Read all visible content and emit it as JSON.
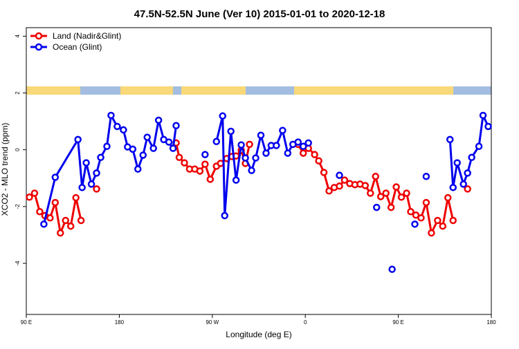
{
  "chart_data": {
    "type": "line",
    "title": "47.5N-52.5N June (Ver 10)   2015-01-01 to 2020-12-18",
    "x_label": "Longitude (deg E)",
    "y_label": "XCO2 - MLO trend (ppm)",
    "xlim": [
      90,
      540
    ],
    "ylim": [
      -5.8,
      4.3
    ],
    "xticks": [
      {
        "value": 90,
        "label": "90 E"
      },
      {
        "value": 180,
        "label": "180"
      },
      {
        "value": 270,
        "label": "90 W"
      },
      {
        "value": 360,
        "label": "0"
      },
      {
        "value": 450,
        "label": "90 E"
      },
      {
        "value": 540,
        "label": "180"
      }
    ],
    "yticks": [
      -4,
      -2,
      0,
      2,
      4
    ],
    "legend": "top-left",
    "series": [
      {
        "name": "Land (Nadir&Glint)",
        "color": "#ee0000",
        "x": [
          93,
          98,
          103,
          108,
          113,
          118,
          123,
          128,
          133,
          138,
          143,
          null,
          158,
          null,
          235,
          238,
          243,
          248,
          253,
          258,
          263,
          268,
          274,
          278,
          284,
          289,
          293,
          298,
          302,
          306,
          null,
          353,
          358,
          363,
          369,
          373,
          378,
          383,
          388,
          393,
          398,
          403,
          408,
          413,
          418,
          423,
          428,
          433,
          438,
          443,
          448,
          453,
          458,
          462,
          467,
          472,
          477,
          482,
          488,
          493,
          498,
          503,
          null,
          517
        ],
        "values": [
          -1.67,
          -1.53,
          -2.18,
          -2.32,
          -2.4,
          -1.86,
          -2.93,
          -2.49,
          -2.69,
          -1.69,
          -2.49,
          null,
          -1.38,
          null,
          0.24,
          -0.27,
          -0.46,
          -0.68,
          -0.68,
          -0.75,
          -0.51,
          -1.04,
          -0.58,
          -0.48,
          -0.31,
          -0.24,
          -0.22,
          -0.02,
          -0.48,
          0.19,
          null,
          0.19,
          -0.12,
          0.05,
          -0.17,
          -0.39,
          -0.8,
          -1.45,
          -1.33,
          -1.28,
          -1.07,
          -1.19,
          -1.23,
          -1.21,
          -1.26,
          -1.53,
          -0.94,
          -1.65,
          -1.53,
          -2.03,
          -1.31,
          -1.67,
          -1.53,
          -2.18,
          -2.3,
          -2.4,
          -1.86,
          -2.93,
          -2.49,
          -2.69,
          -1.69,
          -2.49,
          null,
          -1.38
        ]
      },
      {
        "name": "Ocean (Glint)",
        "color": "#0000ee",
        "x": [
          107,
          118,
          140,
          144,
          148,
          153,
          158,
          162,
          168,
          172,
          178,
          184,
          188,
          193,
          198,
          203,
          207,
          213,
          218,
          223,
          228,
          232,
          235,
          null,
          263,
          null,
          274,
          280,
          282,
          288,
          293,
          298,
          302,
          308,
          312,
          317,
          322,
          327,
          332,
          338,
          343,
          348,
          353,
          358,
          363,
          null,
          393,
          null,
          429,
          null,
          444,
          null,
          466,
          null,
          477,
          null,
          500,
          503,
          507,
          513,
          517,
          521,
          528,
          532,
          537
        ],
        "values": [
          -2.62,
          -0.97,
          0.36,
          -1.33,
          -0.46,
          -1.21,
          -0.82,
          -0.27,
          0.12,
          1.21,
          0.82,
          0.7,
          0.1,
          0.02,
          -0.68,
          -0.19,
          0.44,
          0.05,
          1.04,
          0.36,
          0.27,
          0.05,
          0.85,
          null,
          -0.17,
          null,
          0.29,
          1.19,
          -2.32,
          0.65,
          -1.07,
          0.17,
          -0.29,
          -0.73,
          -0.29,
          0.51,
          -0.12,
          0.15,
          0.15,
          0.68,
          -0.12,
          0.19,
          0.27,
          0.12,
          0.24,
          null,
          -0.9,
          null,
          -2.03,
          null,
          -4.21,
          null,
          -2.62,
          null,
          -0.94,
          null,
          0.36,
          -1.33,
          -0.46,
          -1.21,
          -0.82,
          -0.27,
          0.12,
          1.21,
          0.82
        ]
      }
    ]
  }
}
